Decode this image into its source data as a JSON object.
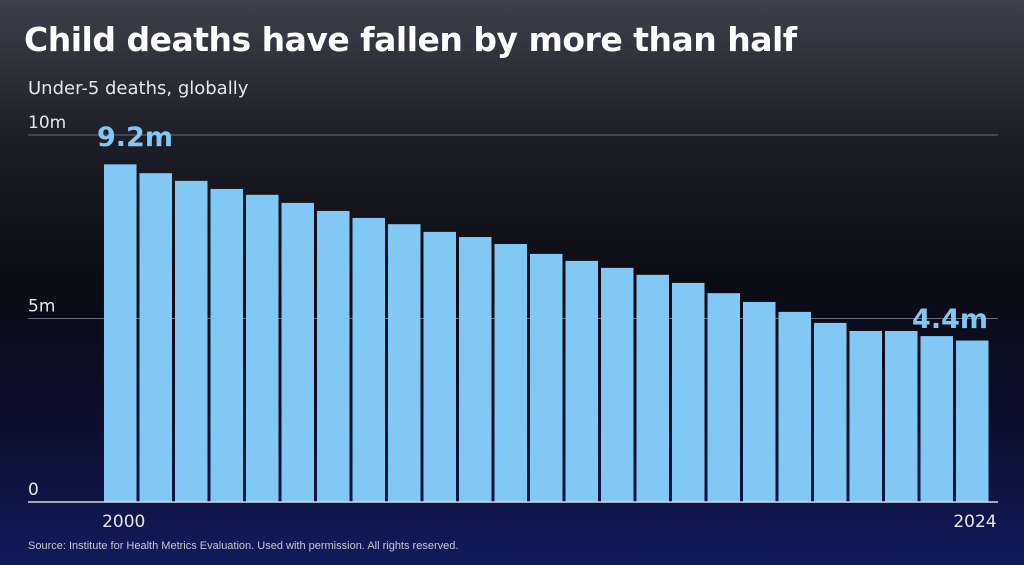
{
  "title": "Child deaths have fallen by more than half",
  "subtitle": "Under-5 deaths, globally",
  "source": "Source: Institute for Health Metrics Evaluation. Used with permission. All rights reserved.",
  "colors": {
    "bar": "#82c8f4",
    "annotation": "#82c8f4"
  },
  "chart_data": {
    "type": "bar",
    "title": "Child deaths have fallen by more than half",
    "ylabel": "Under-5 deaths, globally (millions)",
    "ylim": [
      0,
      10
    ],
    "yticks": [
      {
        "value": 0,
        "label": "0"
      },
      {
        "value": 5,
        "label": "5m"
      },
      {
        "value": 10,
        "label": "10m"
      }
    ],
    "xtick_labels": [
      "2000",
      "2024"
    ],
    "categories": [
      2000,
      2001,
      2002,
      2003,
      2004,
      2005,
      2006,
      2007,
      2008,
      2009,
      2010,
      2011,
      2012,
      2013,
      2014,
      2015,
      2016,
      2017,
      2018,
      2019,
      2020,
      2021,
      2022,
      2023,
      2024
    ],
    "values": [
      9.2,
      8.96,
      8.75,
      8.53,
      8.37,
      8.15,
      7.93,
      7.74,
      7.57,
      7.36,
      7.22,
      7.03,
      6.76,
      6.57,
      6.38,
      6.19,
      5.97,
      5.69,
      5.45,
      5.18,
      4.88,
      4.66,
      4.66,
      4.52,
      4.4
    ],
    "annotations": [
      {
        "index": 0,
        "label": "9.2m"
      },
      {
        "index": 24,
        "label": "4.4m"
      }
    ],
    "grid": true
  }
}
